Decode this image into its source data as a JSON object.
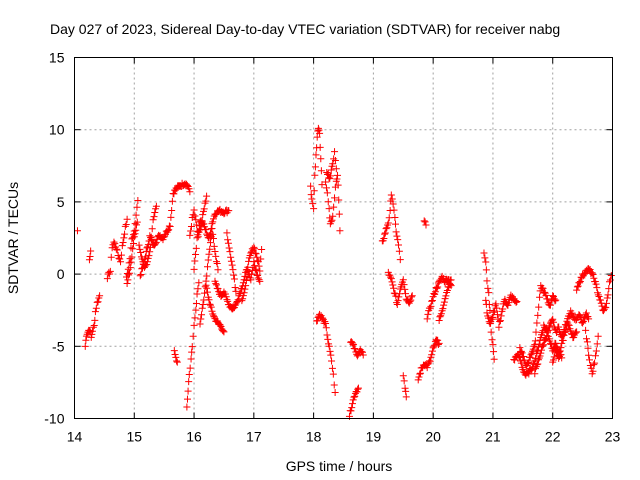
{
  "chart_data": {
    "type": "scatter",
    "title": "Day 027 of 2023, Sidereal Day-to-day VTEC variation (SDTVAR) for receiver nabg",
    "xlabel": "GPS time / hours",
    "ylabel": "SDTVAR / TECUs",
    "xlim": [
      14,
      23
    ],
    "ylim": [
      -10,
      15
    ],
    "x_ticks": [
      "14",
      "15",
      "16",
      "17",
      "18",
      "19",
      "20",
      "21",
      "22",
      "23"
    ],
    "y_ticks": [
      "15",
      "10",
      "5",
      "0",
      "-5",
      "-10"
    ],
    "grid": true,
    "marker": "plus",
    "colors": {
      "series": "#ff0000",
      "axes": "#000000",
      "grid": "#a0a0a0"
    },
    "segments": [
      [
        [
          14.05,
          3.0
        ]
      ],
      [
        [
          14.18,
          -5.0
        ],
        [
          14.2,
          -4.2
        ],
        [
          14.25,
          -3.8
        ],
        [
          14.28,
          -4.4
        ],
        [
          14.3,
          -3.9
        ],
        [
          14.33,
          -3.6
        ],
        [
          14.35,
          -2.6
        ],
        [
          14.38,
          -2.0
        ],
        [
          14.42,
          -1.5
        ]
      ],
      [
        [
          14.25,
          1.0
        ],
        [
          14.27,
          1.6
        ]
      ],
      [
        [
          14.55,
          -0.2
        ],
        [
          14.6,
          0.2
        ],
        [
          14.63,
          1.9
        ],
        [
          14.66,
          2.2
        ],
        [
          14.7,
          1.8
        ],
        [
          14.73,
          1.3
        ],
        [
          14.77,
          0.9
        ],
        [
          14.8,
          1.9
        ],
        [
          14.85,
          3.2
        ],
        [
          14.88,
          3.8
        ]
      ],
      [
        [
          14.87,
          -0.3
        ],
        [
          14.9,
          0.4
        ],
        [
          14.93,
          1.1
        ],
        [
          14.96,
          2.4
        ],
        [
          15.0,
          3.0
        ],
        [
          15.03,
          4.2
        ],
        [
          15.06,
          5.1
        ]
      ],
      [
        [
          14.88,
          -0.7
        ],
        [
          14.92,
          0.1
        ],
        [
          14.96,
          1.2
        ],
        [
          15.0,
          2.6
        ],
        [
          15.05,
          3.6
        ]
      ],
      [
        [
          15.08,
          2.1
        ],
        [
          15.12,
          1.1
        ],
        [
          15.17,
          0.4
        ],
        [
          15.22,
          0.9
        ],
        [
          15.27,
          1.8
        ],
        [
          15.3,
          3.2
        ],
        [
          15.33,
          4.1
        ],
        [
          15.37,
          4.7
        ]
      ],
      [
        [
          15.1,
          -0.1
        ],
        [
          15.15,
          0.6
        ],
        [
          15.2,
          1.5
        ],
        [
          15.26,
          2.6
        ],
        [
          15.32,
          2.0
        ],
        [
          15.38,
          2.4
        ],
        [
          15.42,
          2.7
        ],
        [
          15.48,
          2.5
        ],
        [
          15.55,
          3.0
        ],
        [
          15.6,
          3.4
        ],
        [
          15.65,
          5.6
        ],
        [
          15.7,
          5.9
        ],
        [
          15.75,
          6.1
        ],
        [
          15.8,
          6.2
        ],
        [
          15.85,
          6.3
        ],
        [
          15.9,
          6.1
        ],
        [
          15.93,
          5.7
        ]
      ],
      [
        [
          15.67,
          -5.4
        ],
        [
          15.72,
          -6.1
        ]
      ],
      [
        [
          15.88,
          -9.3
        ],
        [
          15.9,
          -8.1
        ],
        [
          15.92,
          -7.0
        ],
        [
          15.95,
          -6.0
        ],
        [
          15.97,
          -5.0
        ],
        [
          16.0,
          -3.6
        ],
        [
          16.03,
          -2.6
        ],
        [
          16.05,
          -1.5
        ],
        [
          16.08,
          -0.6
        ]
      ],
      [
        [
          15.93,
          2.6
        ],
        [
          15.97,
          3.8
        ],
        [
          16.0,
          4.4
        ],
        [
          16.03,
          3.7
        ],
        [
          16.07,
          2.6
        ],
        [
          16.12,
          3.4
        ],
        [
          16.17,
          4.6
        ],
        [
          16.21,
          5.4
        ]
      ],
      [
        [
          16.0,
          0.4
        ],
        [
          16.05,
          2.4
        ],
        [
          16.1,
          3.7
        ],
        [
          16.15,
          3.5
        ],
        [
          16.2,
          3.0
        ],
        [
          16.25,
          2.4
        ],
        [
          16.3,
          3.5
        ],
        [
          16.35,
          4.2
        ],
        [
          16.42,
          4.4
        ],
        [
          16.5,
          4.3
        ],
        [
          16.58,
          4.4
        ]
      ],
      [
        [
          16.1,
          -3.4
        ],
        [
          16.15,
          -2.1
        ],
        [
          16.2,
          -0.6
        ],
        [
          16.25,
          1.4
        ],
        [
          16.3,
          3.1
        ],
        [
          16.35,
          1.6
        ],
        [
          16.4,
          0.3
        ]
      ],
      [
        [
          16.2,
          -0.8
        ],
        [
          16.25,
          -1.8
        ],
        [
          16.3,
          -2.6
        ],
        [
          16.35,
          -3.1
        ],
        [
          16.4,
          -3.4
        ],
        [
          16.45,
          -3.6
        ],
        [
          16.5,
          -4.0
        ]
      ],
      [
        [
          16.35,
          -0.6
        ],
        [
          16.4,
          -1.1
        ],
        [
          16.45,
          -1.5
        ],
        [
          16.5,
          -1.2
        ],
        [
          16.55,
          -1.8
        ],
        [
          16.6,
          -2.2
        ],
        [
          16.65,
          -2.4
        ],
        [
          16.7,
          -2.1
        ],
        [
          16.75,
          -1.5
        ],
        [
          16.8,
          -0.9
        ],
        [
          16.85,
          -0.2
        ],
        [
          16.9,
          0.6
        ],
        [
          16.95,
          1.4
        ],
        [
          17.0,
          1.9
        ],
        [
          17.05,
          1.2
        ],
        [
          17.1,
          0.3
        ],
        [
          17.13,
          1.7
        ]
      ],
      [
        [
          16.55,
          2.8
        ],
        [
          16.6,
          1.6
        ],
        [
          16.65,
          0.3
        ],
        [
          16.7,
          -1.2
        ]
      ],
      [
        [
          16.8,
          -1.8
        ],
        [
          16.85,
          -1.0
        ],
        [
          16.9,
          0.2
        ],
        [
          16.95,
          -0.4
        ],
        [
          17.0,
          0.8
        ],
        [
          17.05,
          0.0
        ],
        [
          17.1,
          -0.5
        ]
      ],
      [
        [
          17.95,
          6.0
        ],
        [
          17.97,
          5.2
        ],
        [
          18.0,
          4.6
        ],
        [
          18.02,
          6.8
        ],
        [
          18.04,
          8.2
        ],
        [
          18.06,
          9.5
        ],
        [
          18.08,
          10.2
        ],
        [
          18.1,
          9.8
        ],
        [
          18.12,
          8.0
        ],
        [
          18.14,
          6.2
        ]
      ],
      [
        [
          18.05,
          -3.2
        ],
        [
          18.1,
          -2.8
        ],
        [
          18.15,
          -3.1
        ],
        [
          18.2,
          -3.5
        ],
        [
          18.25,
          -4.8
        ],
        [
          18.3,
          -6.0
        ],
        [
          18.33,
          -7.0
        ],
        [
          18.36,
          -8.2
        ]
      ],
      [
        [
          18.2,
          6.3
        ],
        [
          18.23,
          5.6
        ],
        [
          18.26,
          4.5
        ],
        [
          18.28,
          3.5
        ],
        [
          18.32,
          4.0
        ],
        [
          18.35,
          5.4
        ],
        [
          18.38,
          6.4
        ],
        [
          18.4,
          6.9
        ],
        [
          18.42,
          5.2
        ],
        [
          18.44,
          3.0
        ]
      ],
      [
        [
          18.22,
          7.0
        ],
        [
          18.27,
          6.7
        ],
        [
          18.32,
          7.6
        ],
        [
          18.35,
          8.6
        ],
        [
          18.38,
          7.3
        ]
      ],
      [
        [
          18.6,
          -9.8
        ],
        [
          18.65,
          -8.9
        ],
        [
          18.7,
          -8.2
        ],
        [
          18.75,
          -7.9
        ]
      ],
      [
        [
          18.62,
          -4.6
        ],
        [
          18.68,
          -5.1
        ],
        [
          18.72,
          -5.6
        ],
        [
          18.78,
          -5.3
        ],
        [
          18.83,
          -5.6
        ]
      ],
      [
        [
          19.15,
          2.2
        ],
        [
          19.2,
          2.9
        ],
        [
          19.25,
          3.6
        ],
        [
          19.28,
          4.3
        ],
        [
          19.3,
          5.6
        ],
        [
          19.33,
          4.9
        ],
        [
          19.36,
          3.8
        ],
        [
          19.38,
          3.0
        ],
        [
          19.42,
          2.0
        ],
        [
          19.45,
          1.0
        ]
      ],
      [
        [
          19.25,
          0.1
        ],
        [
          19.3,
          -0.4
        ],
        [
          19.35,
          -1.2
        ],
        [
          19.4,
          -2.1
        ],
        [
          19.45,
          -1.0
        ],
        [
          19.5,
          -0.3
        ],
        [
          19.55,
          -1.7
        ],
        [
          19.6,
          -1.9
        ],
        [
          19.65,
          -1.5
        ]
      ],
      [
        [
          19.5,
          -7.0
        ],
        [
          19.53,
          -7.8
        ],
        [
          19.55,
          -8.5
        ]
      ],
      [
        [
          19.85,
          3.6
        ],
        [
          19.88,
          3.4
        ]
      ],
      [
        [
          19.75,
          -7.3
        ],
        [
          19.8,
          -6.6
        ],
        [
          19.85,
          -6.2
        ],
        [
          19.9,
          -6.4
        ],
        [
          19.95,
          -6.0
        ],
        [
          20.0,
          -5.2
        ],
        [
          20.05,
          -4.6
        ],
        [
          20.1,
          -4.8
        ]
      ],
      [
        [
          19.9,
          -3.0
        ],
        [
          19.95,
          -2.3
        ],
        [
          20.0,
          -1.6
        ],
        [
          20.05,
          -1.0
        ],
        [
          20.1,
          -0.6
        ],
        [
          20.15,
          -0.2
        ],
        [
          20.2,
          -0.5
        ],
        [
          20.25,
          -0.3
        ],
        [
          20.3,
          -0.8
        ]
      ],
      [
        [
          20.1,
          -3.2
        ],
        [
          20.15,
          -2.6
        ],
        [
          20.2,
          -1.6
        ],
        [
          20.25,
          -0.9
        ],
        [
          20.3,
          -0.4
        ]
      ],
      [
        [
          20.85,
          1.5
        ],
        [
          20.88,
          0.8
        ],
        [
          20.9,
          -0.4
        ],
        [
          20.93,
          -1.4
        ],
        [
          20.95,
          -2.6
        ],
        [
          20.97,
          -4.0
        ],
        [
          21.0,
          -4.9
        ],
        [
          21.02,
          -5.9
        ]
      ],
      [
        [
          20.88,
          -1.8
        ],
        [
          20.9,
          -2.6
        ],
        [
          20.95,
          -3.5
        ],
        [
          21.0,
          -2.9
        ],
        [
          21.05,
          -2.1
        ],
        [
          21.1,
          -3.6
        ],
        [
          21.15,
          -2.6
        ],
        [
          21.2,
          -1.7
        ],
        [
          21.25,
          -2.2
        ],
        [
          21.3,
          -1.5
        ],
        [
          21.35,
          -1.8
        ],
        [
          21.4,
          -1.9
        ]
      ],
      [
        [
          21.35,
          -6.0
        ],
        [
          21.4,
          -5.6
        ],
        [
          21.45,
          -5.8
        ],
        [
          21.5,
          -6.6
        ],
        [
          21.55,
          -7.0
        ],
        [
          21.6,
          -6.8
        ],
        [
          21.65,
          -6.5
        ],
        [
          21.7,
          -6.0
        ],
        [
          21.75,
          -5.2
        ],
        [
          21.8,
          -4.4
        ],
        [
          21.85,
          -3.6
        ],
        [
          21.9,
          -3.9
        ],
        [
          21.95,
          -4.6
        ],
        [
          22.0,
          -5.2
        ],
        [
          22.05,
          -4.8
        ],
        [
          22.1,
          -5.4
        ],
        [
          22.15,
          -5.8
        ]
      ],
      [
        [
          21.45,
          -5.2
        ],
        [
          21.5,
          -5.6
        ],
        [
          21.55,
          -6.4
        ],
        [
          21.6,
          -6.0
        ],
        [
          21.65,
          -5.4
        ],
        [
          21.7,
          -5.0
        ],
        [
          21.72,
          -4.0
        ],
        [
          21.75,
          -2.8
        ],
        [
          21.78,
          -1.6
        ],
        [
          21.8,
          -0.8
        ],
        [
          21.85,
          -1.2
        ],
        [
          21.9,
          -1.6
        ],
        [
          21.95,
          -2.2
        ],
        [
          22.0,
          -1.6
        ],
        [
          22.05,
          -1.8
        ]
      ],
      [
        [
          21.7,
          -6.8
        ],
        [
          21.75,
          -6.2
        ],
        [
          21.8,
          -5.4
        ],
        [
          21.85,
          -4.8
        ],
        [
          21.9,
          -4.2
        ],
        [
          21.95,
          -3.6
        ],
        [
          22.0,
          -3.2
        ],
        [
          22.05,
          -4.0
        ],
        [
          22.1,
          -3.7
        ],
        [
          22.15,
          -4.4
        ],
        [
          22.2,
          -3.8
        ],
        [
          22.25,
          -3.0
        ],
        [
          22.3,
          -2.6
        ],
        [
          22.35,
          -3.0
        ],
        [
          22.4,
          -3.2
        ],
        [
          22.45,
          -2.8
        ],
        [
          22.5,
          -3.5
        ],
        [
          22.55,
          -2.7
        ],
        [
          22.6,
          -3.1
        ]
      ],
      [
        [
          22.0,
          -6.0
        ],
        [
          22.05,
          -5.3
        ],
        [
          22.1,
          -5.9
        ],
        [
          22.15,
          -4.9
        ],
        [
          22.2,
          -4.1
        ],
        [
          22.25,
          -3.4
        ],
        [
          22.3,
          -3.9
        ],
        [
          22.35,
          -4.4
        ],
        [
          22.4,
          -4.0
        ]
      ],
      [
        [
          22.4,
          -1.0
        ],
        [
          22.45,
          -0.5
        ],
        [
          22.5,
          -0.1
        ],
        [
          22.55,
          0.2
        ],
        [
          22.6,
          0.3
        ],
        [
          22.65,
          0.1
        ],
        [
          22.7,
          -0.4
        ],
        [
          22.75,
          -1.2
        ],
        [
          22.8,
          -1.9
        ],
        [
          22.85,
          -2.6
        ],
        [
          22.9,
          -2.1
        ],
        [
          22.95,
          -0.6
        ],
        [
          22.98,
          -0.1
        ]
      ],
      [
        [
          22.55,
          -4.0
        ],
        [
          22.58,
          -4.8
        ],
        [
          22.6,
          -5.6
        ],
        [
          22.63,
          -6.3
        ],
        [
          22.66,
          -6.9
        ],
        [
          22.7,
          -6.1
        ],
        [
          22.73,
          -5.2
        ],
        [
          22.76,
          -4.3
        ]
      ]
    ]
  }
}
